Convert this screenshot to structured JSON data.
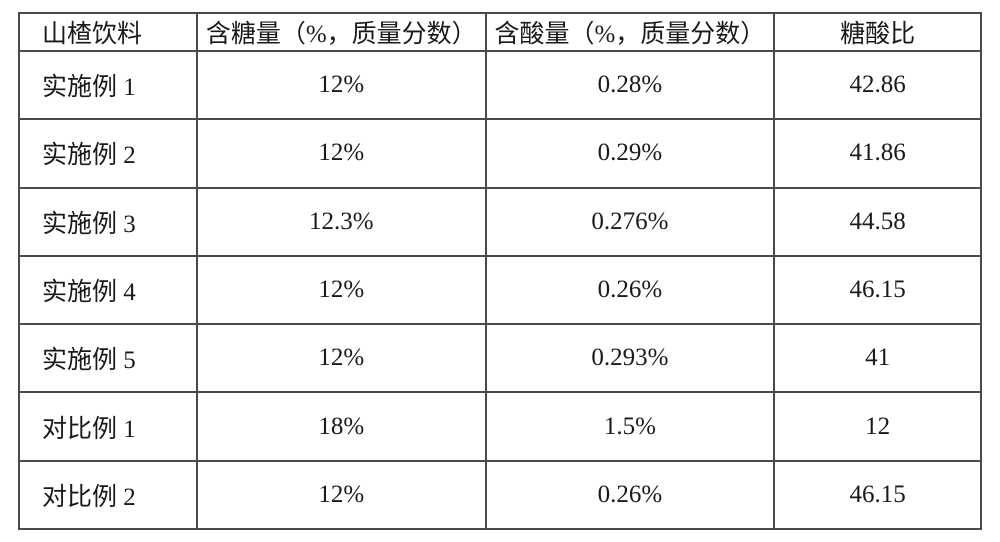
{
  "table": {
    "columns": [
      {
        "label": "山楂饮料",
        "align": "left",
        "width_pct": 18.5
      },
      {
        "label": "含糖量（%，质量分数）",
        "align": "center",
        "width_pct": 30
      },
      {
        "label": "含酸量（%，质量分数）",
        "align": "center",
        "width_pct": 30
      },
      {
        "label": "糖酸比",
        "align": "center",
        "width_pct": 21.5
      }
    ],
    "rows": [
      {
        "c0": "实施例 1",
        "c1": "12%",
        "c2": "0.28%",
        "c3": "42.86"
      },
      {
        "c0": "实施例 2",
        "c1": "12%",
        "c2": "0.29%",
        "c3": "41.86"
      },
      {
        "c0": "实施例 3",
        "c1": "12.3%",
        "c2": "0.276%",
        "c3": "44.58"
      },
      {
        "c0": "实施例 4",
        "c1": "12%",
        "c2": "0.26%",
        "c3": "46.15"
      },
      {
        "c0": "实施例 5",
        "c1": "12%",
        "c2": "0.293%",
        "c3": "41"
      },
      {
        "c0": "对比例 1",
        "c1": "18%",
        "c2": "1.5%",
        "c3": "12"
      },
      {
        "c0": "对比例 2",
        "c1": "12%",
        "c2": "0.26%",
        "c3": "46.15"
      }
    ],
    "border_color": "#4a4a4a",
    "text_color": "#1a1a1a",
    "background_color": "#ffffff",
    "font_size_pt": 19
  }
}
